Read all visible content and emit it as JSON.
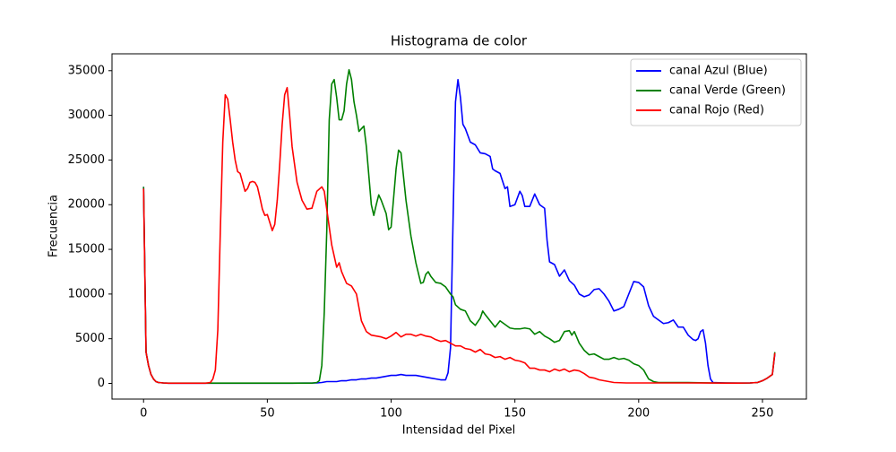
{
  "chart_data": {
    "type": "line",
    "title": "Histograma de color",
    "x_label": "Intensidad del Pixel",
    "y_label": "Frecuencia",
    "xlim": [
      -12.75,
      267.75
    ],
    "xticks": [
      0,
      50,
      100,
      150,
      200,
      250
    ],
    "ylim": [
      -1756,
      36886
    ],
    "yticks": [
      0,
      5000,
      10000,
      15000,
      20000,
      25000,
      30000,
      35000
    ],
    "grid": false,
    "legend": "upper right",
    "series": [
      {
        "name": "canal Azul (Blue)",
        "color": "#0000ff",
        "x": [
          0,
          1,
          2,
          3,
          4,
          5,
          6,
          8,
          10,
          20,
          30,
          40,
          50,
          60,
          70,
          72,
          74,
          76,
          78,
          80,
          82,
          84,
          86,
          88,
          90,
          92,
          94,
          96,
          98,
          100,
          102,
          104,
          106,
          108,
          110,
          112,
          114,
          116,
          118,
          120,
          122,
          123,
          124,
          125,
          126,
          127,
          128,
          129,
          130,
          132,
          134,
          136,
          138,
          140,
          141,
          142,
          144,
          146,
          147,
          148,
          150,
          152,
          153,
          154,
          156,
          158,
          160,
          162,
          163,
          164,
          166,
          168,
          170,
          172,
          174,
          176,
          178,
          180,
          182,
          184,
          186,
          188,
          190,
          192,
          194,
          196,
          198,
          200,
          202,
          204,
          206,
          208,
          210,
          212,
          214,
          216,
          218,
          220,
          222,
          223,
          224,
          225,
          226,
          227,
          228,
          229,
          230,
          235,
          240,
          245,
          248,
          250,
          252,
          254,
          255
        ],
        "values": [
          22000,
          3500,
          2000,
          1000,
          500,
          200,
          100,
          50,
          20,
          20,
          20,
          20,
          20,
          20,
          50,
          100,
          200,
          200,
          200,
          300,
          300,
          400,
          400,
          500,
          500,
          600,
          600,
          700,
          800,
          900,
          900,
          1000,
          900,
          900,
          900,
          800,
          700,
          600,
          500,
          400,
          400,
          1200,
          4000,
          18000,
          31500,
          34000,
          32000,
          29000,
          28500,
          27000,
          26700,
          25800,
          25700,
          25400,
          24000,
          23800,
          23500,
          21800,
          22000,
          19800,
          20000,
          21500,
          21000,
          19800,
          19800,
          21200,
          20000,
          19600,
          16000,
          13600,
          13300,
          12000,
          12700,
          11500,
          11000,
          10000,
          9700,
          9900,
          10500,
          10600,
          10000,
          9200,
          8100,
          8300,
          8600,
          10000,
          11400,
          11300,
          10800,
          8700,
          7500,
          7100,
          6700,
          6800,
          7100,
          6300,
          6300,
          5400,
          4900,
          4800,
          5000,
          5800,
          6000,
          4500,
          2000,
          500,
          100,
          50,
          30,
          50,
          100,
          300,
          600,
          1000,
          3300
        ]
      },
      {
        "name": "canal Verde (Green)",
        "color": "#008000",
        "x": [
          0,
          1,
          2,
          3,
          4,
          5,
          6,
          8,
          10,
          20,
          30,
          40,
          50,
          60,
          68,
          70,
          71,
          72,
          73,
          74,
          75,
          76,
          77,
          78,
          79,
          80,
          81,
          82,
          83,
          84,
          85,
          86,
          87,
          88,
          89,
          90,
          92,
          93,
          94,
          95,
          96,
          98,
          99,
          100,
          102,
          103,
          104,
          106,
          108,
          110,
          112,
          113,
          114,
          115,
          116,
          118,
          120,
          122,
          124,
          125,
          126,
          128,
          130,
          132,
          134,
          136,
          137,
          138,
          140,
          142,
          144,
          146,
          148,
          150,
          152,
          154,
          156,
          158,
          160,
          162,
          164,
          166,
          168,
          170,
          172,
          173,
          174,
          176,
          178,
          180,
          182,
          184,
          186,
          188,
          190,
          192,
          194,
          196,
          198,
          200,
          202,
          204,
          206,
          208,
          210,
          220,
          230,
          240,
          245,
          248,
          250,
          252,
          254,
          255
        ],
        "values": [
          22000,
          3500,
          2000,
          1000,
          500,
          200,
          100,
          50,
          30,
          30,
          30,
          30,
          30,
          30,
          30,
          100,
          300,
          2000,
          8000,
          17000,
          29500,
          33500,
          34000,
          32000,
          29500,
          29500,
          30500,
          33500,
          35100,
          34000,
          31500,
          30000,
          28200,
          28500,
          28800,
          26500,
          20000,
          18800,
          20000,
          21100,
          20500,
          19000,
          17200,
          17500,
          24000,
          26100,
          25800,
          20500,
          16500,
          13500,
          11200,
          11300,
          12200,
          12500,
          12000,
          11300,
          11200,
          10800,
          10000,
          9700,
          8800,
          8300,
          8100,
          7000,
          6500,
          7300,
          8100,
          7700,
          7000,
          6300,
          7000,
          6600,
          6200,
          6100,
          6100,
          6200,
          6100,
          5500,
          5800,
          5300,
          5000,
          4600,
          4800,
          5800,
          5900,
          5400,
          5800,
          4500,
          3700,
          3200,
          3300,
          3000,
          2700,
          2700,
          2900,
          2700,
          2800,
          2600,
          2200,
          2000,
          1500,
          500,
          200,
          100,
          100,
          100,
          50,
          30,
          50,
          100,
          300,
          600,
          1000,
          3500
        ]
      },
      {
        "name": "canal Rojo (Red)",
        "color": "#ff0000",
        "x": [
          0,
          1,
          2,
          3,
          4,
          5,
          6,
          8,
          10,
          15,
          20,
          25,
          27,
          28,
          29,
          30,
          31,
          32,
          33,
          34,
          35,
          36,
          37,
          38,
          39,
          40,
          41,
          42,
          43,
          44,
          45,
          46,
          47,
          48,
          49,
          50,
          51,
          52,
          53,
          54,
          55,
          56,
          57,
          58,
          59,
          60,
          62,
          64,
          66,
          68,
          70,
          72,
          73,
          74,
          75,
          76,
          78,
          79,
          80,
          82,
          84,
          86,
          88,
          90,
          92,
          94,
          96,
          98,
          100,
          102,
          104,
          106,
          108,
          110,
          112,
          114,
          116,
          118,
          120,
          122,
          124,
          126,
          128,
          130,
          132,
          134,
          136,
          138,
          140,
          142,
          144,
          146,
          148,
          150,
          152,
          154,
          156,
          158,
          160,
          162,
          164,
          166,
          168,
          170,
          172,
          174,
          176,
          178,
          180,
          182,
          184,
          186,
          188,
          190,
          195,
          200,
          210,
          220,
          230,
          235,
          240,
          245,
          248,
          250,
          252,
          254,
          255
        ],
        "values": [
          21800,
          3500,
          2000,
          1000,
          500,
          200,
          100,
          50,
          20,
          20,
          20,
          20,
          100,
          500,
          1500,
          6000,
          17000,
          27000,
          32300,
          31800,
          29500,
          27000,
          25000,
          23700,
          23500,
          22500,
          21500,
          21800,
          22500,
          22600,
          22500,
          22000,
          20800,
          19500,
          18800,
          18900,
          18000,
          17100,
          17800,
          20500,
          24500,
          29000,
          32300,
          33100,
          30000,
          26500,
          22500,
          20500,
          19500,
          19600,
          21500,
          22000,
          21500,
          19500,
          17500,
          15500,
          13000,
          13500,
          12500,
          11200,
          10900,
          10000,
          7000,
          5800,
          5400,
          5300,
          5200,
          5000,
          5300,
          5700,
          5200,
          5500,
          5500,
          5300,
          5500,
          5300,
          5200,
          4900,
          4700,
          4800,
          4500,
          4200,
          4200,
          3900,
          3800,
          3500,
          3800,
          3300,
          3200,
          2900,
          3000,
          2700,
          2900,
          2600,
          2500,
          2300,
          1700,
          1700,
          1500,
          1500,
          1300,
          1600,
          1400,
          1600,
          1300,
          1500,
          1400,
          1100,
          700,
          600,
          400,
          300,
          200,
          100,
          50,
          50,
          50,
          50,
          40,
          30,
          30,
          50,
          100,
          300,
          600,
          1000,
          3400
        ]
      }
    ]
  }
}
